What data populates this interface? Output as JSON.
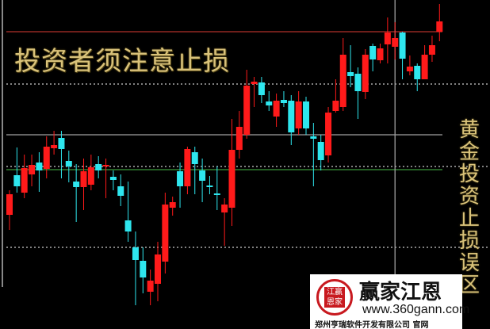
{
  "title": "投资者须注意止损",
  "side_title": "黄金投资止损误区",
  "logo": {
    "seal_text": "江赢恩家",
    "brand": "赢家江恩",
    "url": "www.360gann.com",
    "company": "郑州亨瑞软件开发有限公司 官网"
  },
  "colors": {
    "up": "#ff1a1a",
    "down": "#2ee6ee",
    "background": "#000000",
    "text": "#d9c27a"
  },
  "chart_data": {
    "type": "candlestick",
    "note_units": "relative price",
    "grid": false,
    "candles": [
      [
        129,
        155,
        160,
        110
      ],
      [
        179,
        165,
        214,
        157
      ],
      [
        157,
        188,
        205,
        150
      ],
      [
        180,
        192,
        205,
        165
      ],
      [
        195,
        185,
        208,
        158
      ],
      [
        187,
        215,
        228,
        175
      ],
      [
        213,
        217,
        235,
        205
      ],
      [
        226,
        212,
        235,
        175
      ],
      [
        197,
        190,
        210,
        170
      ],
      [
        171,
        164,
        193,
        120
      ],
      [
        164,
        184,
        200,
        135
      ],
      [
        167,
        189,
        205,
        160
      ],
      [
        193,
        185,
        203,
        175
      ],
      [
        190,
        192,
        200,
        150
      ],
      [
        177,
        173,
        185,
        160
      ],
      [
        165,
        153,
        180,
        140
      ],
      [
        122,
        108,
        171,
        95
      ],
      [
        88,
        72,
        108,
        15
      ],
      [
        71,
        50,
        88,
        30
      ],
      [
        32,
        46,
        60,
        15
      ],
      [
        42,
        79,
        95,
        20
      ],
      [
        70,
        142,
        157,
        55
      ],
      [
        138,
        145,
        152,
        128
      ],
      [
        184,
        165,
        195,
        138
      ],
      [
        165,
        212,
        215,
        155
      ],
      [
        208,
        193,
        215,
        155
      ],
      [
        185,
        172,
        200,
        145
      ],
      [
        166,
        164,
        178,
        155
      ],
      [
        156,
        154,
        190,
        135
      ],
      [
        132,
        142,
        150,
        90
      ],
      [
        138,
        211,
        250,
        115
      ],
      [
        211,
        240,
        260,
        200
      ],
      [
        230,
        292,
        312,
        225
      ],
      [
        294,
        297,
        303,
        265
      ],
      [
        296,
        280,
        303,
        270
      ],
      [
        272,
        267,
        285,
        260
      ],
      [
        253,
        273,
        282,
        240
      ],
      [
        274,
        270,
        285,
        265
      ],
      [
        273,
        233,
        280,
        217
      ],
      [
        238,
        272,
        285,
        230
      ],
      [
        272,
        238,
        278,
        230
      ],
      [
        228,
        225,
        245,
        165
      ],
      [
        221,
        198,
        230,
        185
      ],
      [
        204,
        258,
        265,
        195
      ],
      [
        260,
        273,
        300,
        258
      ],
      [
        265,
        331,
        352,
        260
      ],
      [
        309,
        304,
        343,
        290
      ],
      [
        307,
        285,
        315,
        250
      ],
      [
        284,
        331,
        338,
        275
      ],
      [
        342,
        325,
        345,
        310
      ],
      [
        324,
        339,
        345,
        320
      ],
      [
        344,
        359,
        378,
        320
      ],
      [
        341,
        352,
        372,
        325
      ],
      [
        359,
        326,
        360,
        300
      ],
      [
        310,
        316,
        330,
        305
      ],
      [
        317,
        300,
        320,
        285
      ],
      [
        300,
        331,
        343,
        300
      ],
      [
        331,
        343,
        355,
        322
      ],
      [
        360,
        373,
        395,
        348
      ]
    ],
    "reference_lines": [
      {
        "type": "horizontal",
        "value": 360,
        "color": "#b0302a",
        "style": "solid"
      },
      {
        "type": "horizontal",
        "value": 294,
        "color": "#cccccc",
        "style": "dotted"
      },
      {
        "type": "horizontal",
        "value": 230,
        "color": "#a0a0a0",
        "style": "solid"
      },
      {
        "type": "horizontal",
        "value": 190,
        "color": "#cccccc",
        "style": "dotted"
      },
      {
        "type": "horizontal",
        "value": 186,
        "color": "#3a9a3a",
        "style": "solid"
      },
      {
        "type": "horizontal",
        "value": 88,
        "color": "#cccccc",
        "style": "dotted"
      },
      {
        "type": "vertical",
        "index": 52,
        "color": "#a0a0a0",
        "style": "solid"
      }
    ]
  }
}
